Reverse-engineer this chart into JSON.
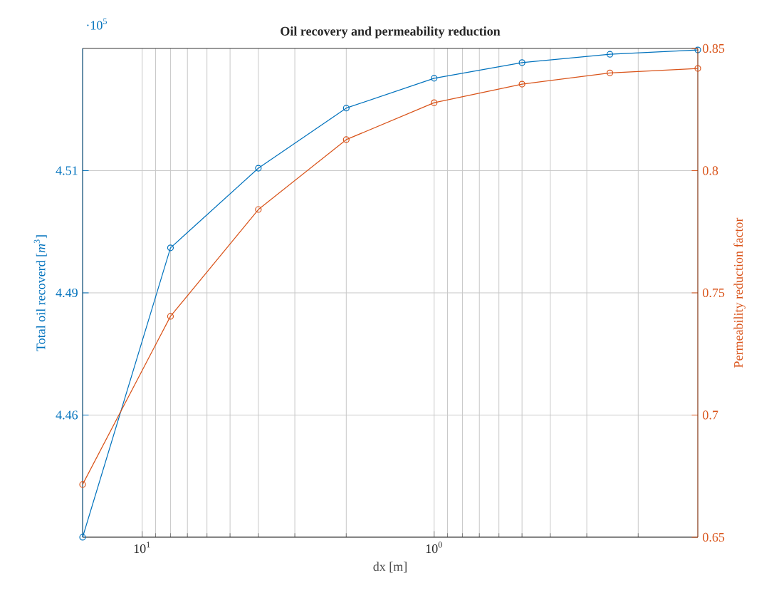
{
  "chart_data": {
    "type": "line",
    "title": "Oil recovery and permeability reduction",
    "xlabel": "dx [m]",
    "ylabel": "Total oil recoverd [*m*$^{3}$]",
    "y2label": "Permeability reduction factor",
    "annotations": [
      "·10$^{5}$"
    ],
    "x": [
      16,
      8,
      4,
      2,
      1,
      0.5,
      0.25,
      0.125
    ],
    "series": [
      {
        "color": "#0072bd",
        "values": [
          4.4375,
          4.4967,
          4.513,
          4.5253,
          4.5314,
          4.5346,
          4.5363,
          4.5372
        ]
      },
      {
        "color": "#d95319",
        "axis": "y2",
        "values": [
          0.6716,
          0.7404,
          0.7841,
          0.8127,
          0.8278,
          0.8354,
          0.84,
          0.8418
        ]
      }
    ],
    "log": "x",
    "xlim": [
      16,
      0.125
    ],
    "xticks": [
      {
        "value": 10,
        "label": "10$^{1}$"
      },
      {
        "value": 1,
        "label": "10$^{0}$"
      }
    ],
    "ylim": [
      4.4375,
      4.5375
    ],
    "yticks": [
      {
        "value": 4.4625,
        "label": "4.46"
      },
      {
        "value": 4.4875,
        "label": "4.49"
      },
      {
        "value": 4.5125,
        "label": "4.51"
      }
    ],
    "y2lim": [
      0.65,
      0.85
    ],
    "y2ticks": [
      0.65,
      0.7,
      0.75,
      0.8,
      0.85
    ],
    "grid": true,
    "marker": "circle",
    "line_style": "solid"
  }
}
